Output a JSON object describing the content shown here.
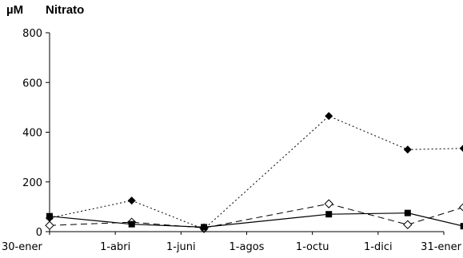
{
  "chart_data": {
    "type": "line",
    "title": "Nitrato",
    "unit": "µM",
    "xlabel": "",
    "ylabel": "",
    "categories": [
      "30-ener",
      "1-abri",
      "1-juni",
      "1-agos",
      "1-octu",
      "1-dici",
      "31-ener"
    ],
    "x_dates": [
      "30-ener",
      "1-abri",
      "1-juni",
      "1-agos",
      "1-octu",
      "1-dici",
      "31-ener"
    ],
    "ylim": [
      0,
      800
    ],
    "yticks": [
      0,
      200,
      400,
      600,
      800
    ],
    "grid": false,
    "legend": "none",
    "series": [
      {
        "marker": "filled-diamond",
        "line": "dotted",
        "color": "#000000",
        "points": [
          {
            "x": 0.0,
            "y": 55
          },
          {
            "x": 1.25,
            "y": 125
          },
          {
            "x": 2.35,
            "y": 10
          },
          {
            "x": 4.25,
            "y": 465
          },
          {
            "x": 5.45,
            "y": 330
          },
          {
            "x": 6.3,
            "y": 335
          }
        ]
      },
      {
        "marker": "open-diamond",
        "line": "dashed",
        "color": "#000000",
        "points": [
          {
            "x": 0.0,
            "y": 25
          },
          {
            "x": 1.25,
            "y": 38
          },
          {
            "x": 2.35,
            "y": 15
          },
          {
            "x": 4.25,
            "y": 112
          },
          {
            "x": 5.45,
            "y": 28
          },
          {
            "x": 6.3,
            "y": 98
          }
        ]
      },
      {
        "marker": "filled-square",
        "line": "solid",
        "color": "#000000",
        "points": [
          {
            "x": 0.0,
            "y": 62
          },
          {
            "x": 1.25,
            "y": 30
          },
          {
            "x": 2.35,
            "y": 18
          },
          {
            "x": 4.25,
            "y": 70
          },
          {
            "x": 5.45,
            "y": 75
          },
          {
            "x": 6.3,
            "y": 22
          }
        ]
      }
    ]
  }
}
